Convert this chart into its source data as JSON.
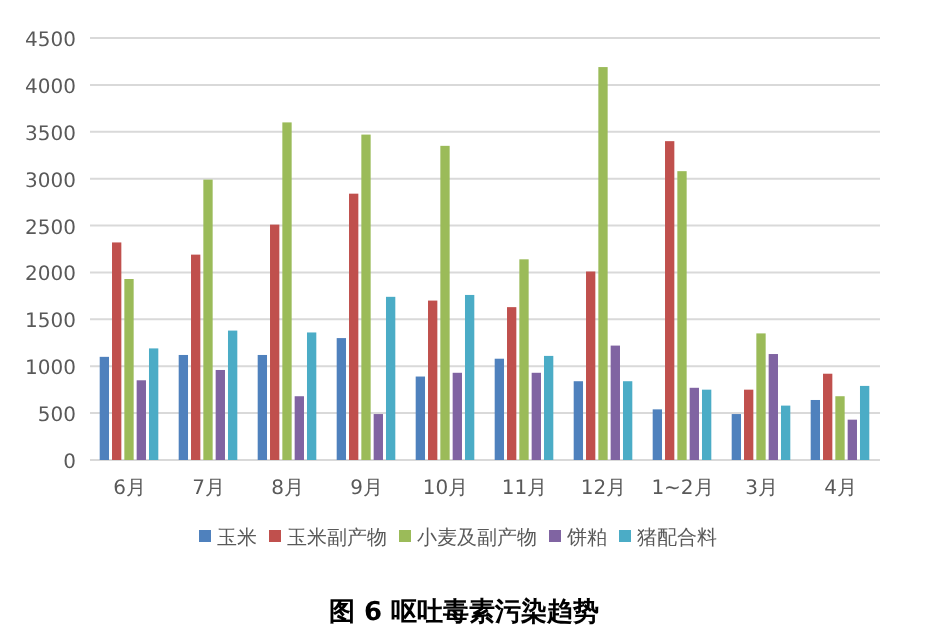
{
  "chart_data": {
    "type": "bar",
    "title": "图 6 呕吐毒素污染趋势",
    "categories": [
      "6月",
      "7月",
      "8月",
      "9月",
      "10月",
      "11月",
      "12月",
      "1~2月",
      "3月",
      "4月"
    ],
    "series": [
      {
        "name": "玉米",
        "color": "#4f81bd",
        "values": [
          1100,
          1120,
          1120,
          1300,
          890,
          1080,
          840,
          540,
          490,
          640
        ]
      },
      {
        "name": "玉米副产物",
        "color": "#c0504d",
        "values": [
          2320,
          2190,
          2510,
          2840,
          1700,
          1630,
          2010,
          3400,
          750,
          920
        ]
      },
      {
        "name": "小麦及副产物",
        "color": "#9bbb59",
        "values": [
          1930,
          2990,
          3600,
          3470,
          3350,
          2140,
          4190,
          3080,
          1350,
          680
        ]
      },
      {
        "name": "饼粕",
        "color": "#8064a2",
        "values": [
          850,
          960,
          680,
          490,
          930,
          930,
          1220,
          770,
          1130,
          430
        ]
      },
      {
        "name": "猪配合料",
        "color": "#4bacc6",
        "values": [
          1190,
          1380,
          1360,
          1740,
          1760,
          1110,
          840,
          750,
          580,
          790
        ]
      }
    ],
    "ylim": [
      0,
      4500
    ],
    "yticks": [
      0,
      500,
      1000,
      1500,
      2000,
      2500,
      3000,
      3500,
      4000,
      4500
    ],
    "grid": "y",
    "legend": "bottom"
  }
}
